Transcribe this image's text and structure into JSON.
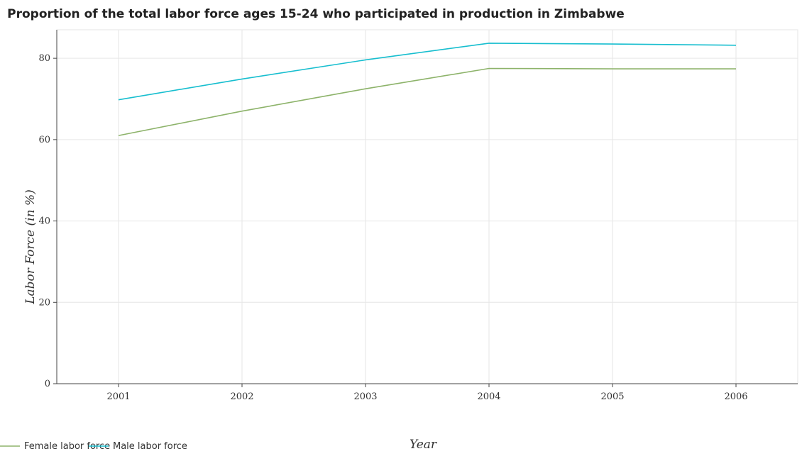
{
  "chart_data": {
    "type": "line",
    "title": "Proportion of the total labor force ages 15-24 who participated in production in Zimbabwe",
    "xlabel": "Year",
    "ylabel": "Labor Force (in %)",
    "categories": [
      "2001",
      "2002",
      "2003",
      "2004",
      "2005",
      "2006"
    ],
    "y_ticks": [
      "0",
      "20",
      "40",
      "60",
      "80"
    ],
    "ylim": [
      0,
      87
    ],
    "grid": true,
    "legend_position": "bottom-left",
    "series": [
      {
        "name": "Female labor force",
        "color": "#8db36a",
        "values": [
          61.0,
          67.0,
          72.5,
          77.5,
          77.4,
          77.4
        ]
      },
      {
        "name": "Male labor force",
        "color": "#17becf",
        "values": [
          69.8,
          74.9,
          79.6,
          83.7,
          83.5,
          83.2
        ]
      }
    ]
  }
}
